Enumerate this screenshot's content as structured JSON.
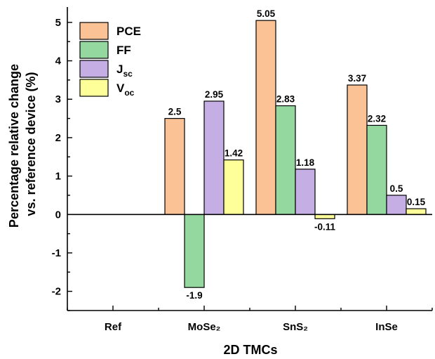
{
  "chart_data": {
    "type": "bar",
    "categories": [
      "Ref",
      "MoSe₂",
      "SnS₂",
      "InSe"
    ],
    "series": [
      {
        "name": "PCE",
        "values": [
          null,
          2.5,
          5.05,
          3.37
        ],
        "labels": [
          "",
          "2.5",
          "5.05",
          "3.37"
        ],
        "color": "#fbc295"
      },
      {
        "name": "FF",
        "values": [
          null,
          -1.9,
          2.83,
          2.32
        ],
        "labels": [
          "",
          "-1.9",
          "2.83",
          "2.32"
        ],
        "color": "#94d8a0"
      },
      {
        "name": "J_sc",
        "values": [
          null,
          2.95,
          1.18,
          0.5
        ],
        "labels": [
          "",
          "2.95",
          "1.18",
          "0.5"
        ],
        "color": "#c4aee3"
      },
      {
        "name": "V_oc",
        "values": [
          null,
          1.42,
          -0.11,
          0.15
        ],
        "labels": [
          "",
          "1.42",
          "-0.11",
          "0.15"
        ],
        "color": "#ffff99"
      }
    ],
    "legend_labels": [
      {
        "main": "PCE",
        "sub": ""
      },
      {
        "main": "FF",
        "sub": ""
      },
      {
        "main": "J",
        "sub": "sc"
      },
      {
        "main": "V",
        "sub": "oc"
      }
    ],
    "xlabel": "2D TMCs",
    "ylabel_lines": [
      "Percentage relative change",
      "vs. reference device (%)"
    ],
    "ylim": [
      -2.5,
      5.4
    ],
    "yticks": [
      -2,
      -1,
      0,
      1,
      2,
      3,
      4,
      5
    ],
    "ytick_labels": [
      "-2",
      "-1",
      "0",
      "1",
      "2",
      "3",
      "4",
      "5"
    ],
    "legend_position": "top-left",
    "grid": false
  }
}
